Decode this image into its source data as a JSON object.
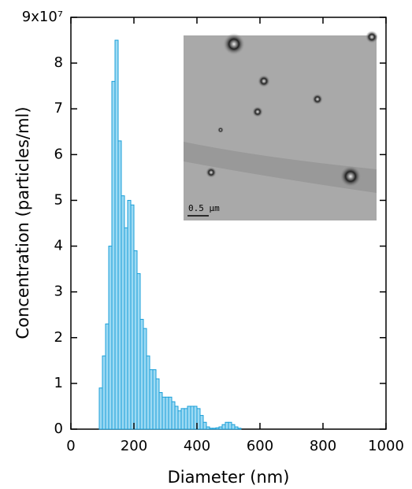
{
  "chart_data": {
    "type": "histogram",
    "xlabel": "Diameter (nm)",
    "ylabel": "Concentration (particles/ml)",
    "bins": [
      90,
      100,
      110,
      120,
      130,
      140,
      150,
      160,
      170,
      180,
      190,
      200,
      210,
      220,
      230,
      240,
      250,
      260,
      270,
      280,
      290,
      300,
      310,
      320,
      330,
      340,
      350,
      360,
      370,
      380,
      390,
      400,
      410,
      420,
      430,
      440,
      450,
      460,
      470,
      480,
      490,
      500,
      510,
      520,
      530,
      540
    ],
    "values": [
      0.9,
      1.6,
      2.3,
      4.0,
      7.6,
      8.5,
      6.3,
      5.1,
      4.4,
      5.0,
      4.9,
      3.9,
      3.4,
      2.4,
      2.2,
      1.6,
      1.3,
      1.3,
      1.1,
      0.8,
      0.7,
      0.7,
      0.7,
      0.6,
      0.5,
      0.4,
      0.45,
      0.45,
      0.5,
      0.5,
      0.5,
      0.45,
      0.3,
      0.15,
      0.05,
      0.02,
      0.02,
      0.03,
      0.05,
      0.1,
      0.15,
      0.15,
      0.1,
      0.05,
      0.02
    ],
    "color": "#1a9fd8",
    "xlim": [
      0,
      1000
    ],
    "xticks": [
      0,
      200,
      400,
      600,
      800,
      1000
    ],
    "ylim": [
      0,
      9
    ],
    "yticks": [
      0,
      1,
      2,
      3,
      4,
      5,
      6,
      7,
      8,
      {
        "value": 9,
        "label": "9x10⁷"
      }
    ],
    "inset": {
      "scale_bar_label": "0.5 μm"
    }
  }
}
